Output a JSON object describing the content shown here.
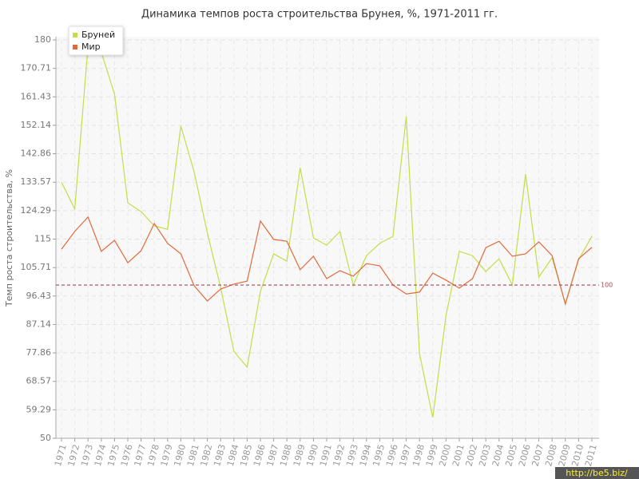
{
  "chart_data": {
    "type": "line",
    "title": "Динамика темпов роста строительства Брунея, %, 1971-2011 гг.",
    "y_label": "Темп роста строительства, %",
    "categories": [
      "1971",
      "1972",
      "1973",
      "1974",
      "1975",
      "1976",
      "1977",
      "1978",
      "1979",
      "1980",
      "1981",
      "1982",
      "1983",
      "1984",
      "1985",
      "1986",
      "1987",
      "1988",
      "1989",
      "1990",
      "1991",
      "1992",
      "1993",
      "1994",
      "1995",
      "1996",
      "1997",
      "1998",
      "1999",
      "2000",
      "2001",
      "2002",
      "2003",
      "2004",
      "2005",
      "2006",
      "2007",
      "2008",
      "2009",
      "2010",
      "2011"
    ],
    "series": [
      {
        "name": "Бруней",
        "color": "#c3de48",
        "values": [
          133.6,
          124.8,
          178,
          176,
          162.3,
          126.8,
          124,
          119.3,
          118.2,
          151.9,
          137,
          117,
          99.2,
          78.4,
          73.2,
          97.9,
          110.2,
          107.8,
          138.3,
          115.4,
          113,
          117.5,
          100,
          109.6,
          113.6,
          115.9,
          155,
          77.6,
          56.8,
          90.1,
          111,
          109.6,
          104.4,
          108.6,
          100,
          136.2,
          102.6,
          108.9,
          94,
          108.3,
          115.9
        ]
      },
      {
        "name": "Мир",
        "color": "#e06a3c",
        "values": [
          111.7,
          117.5,
          122.2,
          111,
          114.6,
          107.3,
          111.2,
          120.1,
          113.6,
          110.2,
          99.8,
          94.8,
          98.7,
          100.3,
          101.3,
          120.9,
          114.9,
          114.3,
          105,
          109.4,
          102.1,
          104.7,
          102.9,
          107,
          106.3,
          100,
          97.1,
          97.7,
          103.9,
          101.6,
          99,
          102.1,
          112.2,
          114.3,
          109.4,
          110.2,
          114.1,
          109.6,
          93.8,
          108.6,
          112.3
        ]
      }
    ],
    "ylim": [
      50,
      180
    ],
    "yticks": [
      50,
      59.29,
      68.57,
      77.86,
      87.14,
      96.43,
      105.71,
      115,
      124.29,
      133.57,
      142.86,
      152.14,
      161.43,
      170.71,
      180
    ],
    "ref_line": 100,
    "ref_color": "#a8485a",
    "grid": true,
    "legend": "top-left",
    "watermark": "http://be5.biz/"
  }
}
